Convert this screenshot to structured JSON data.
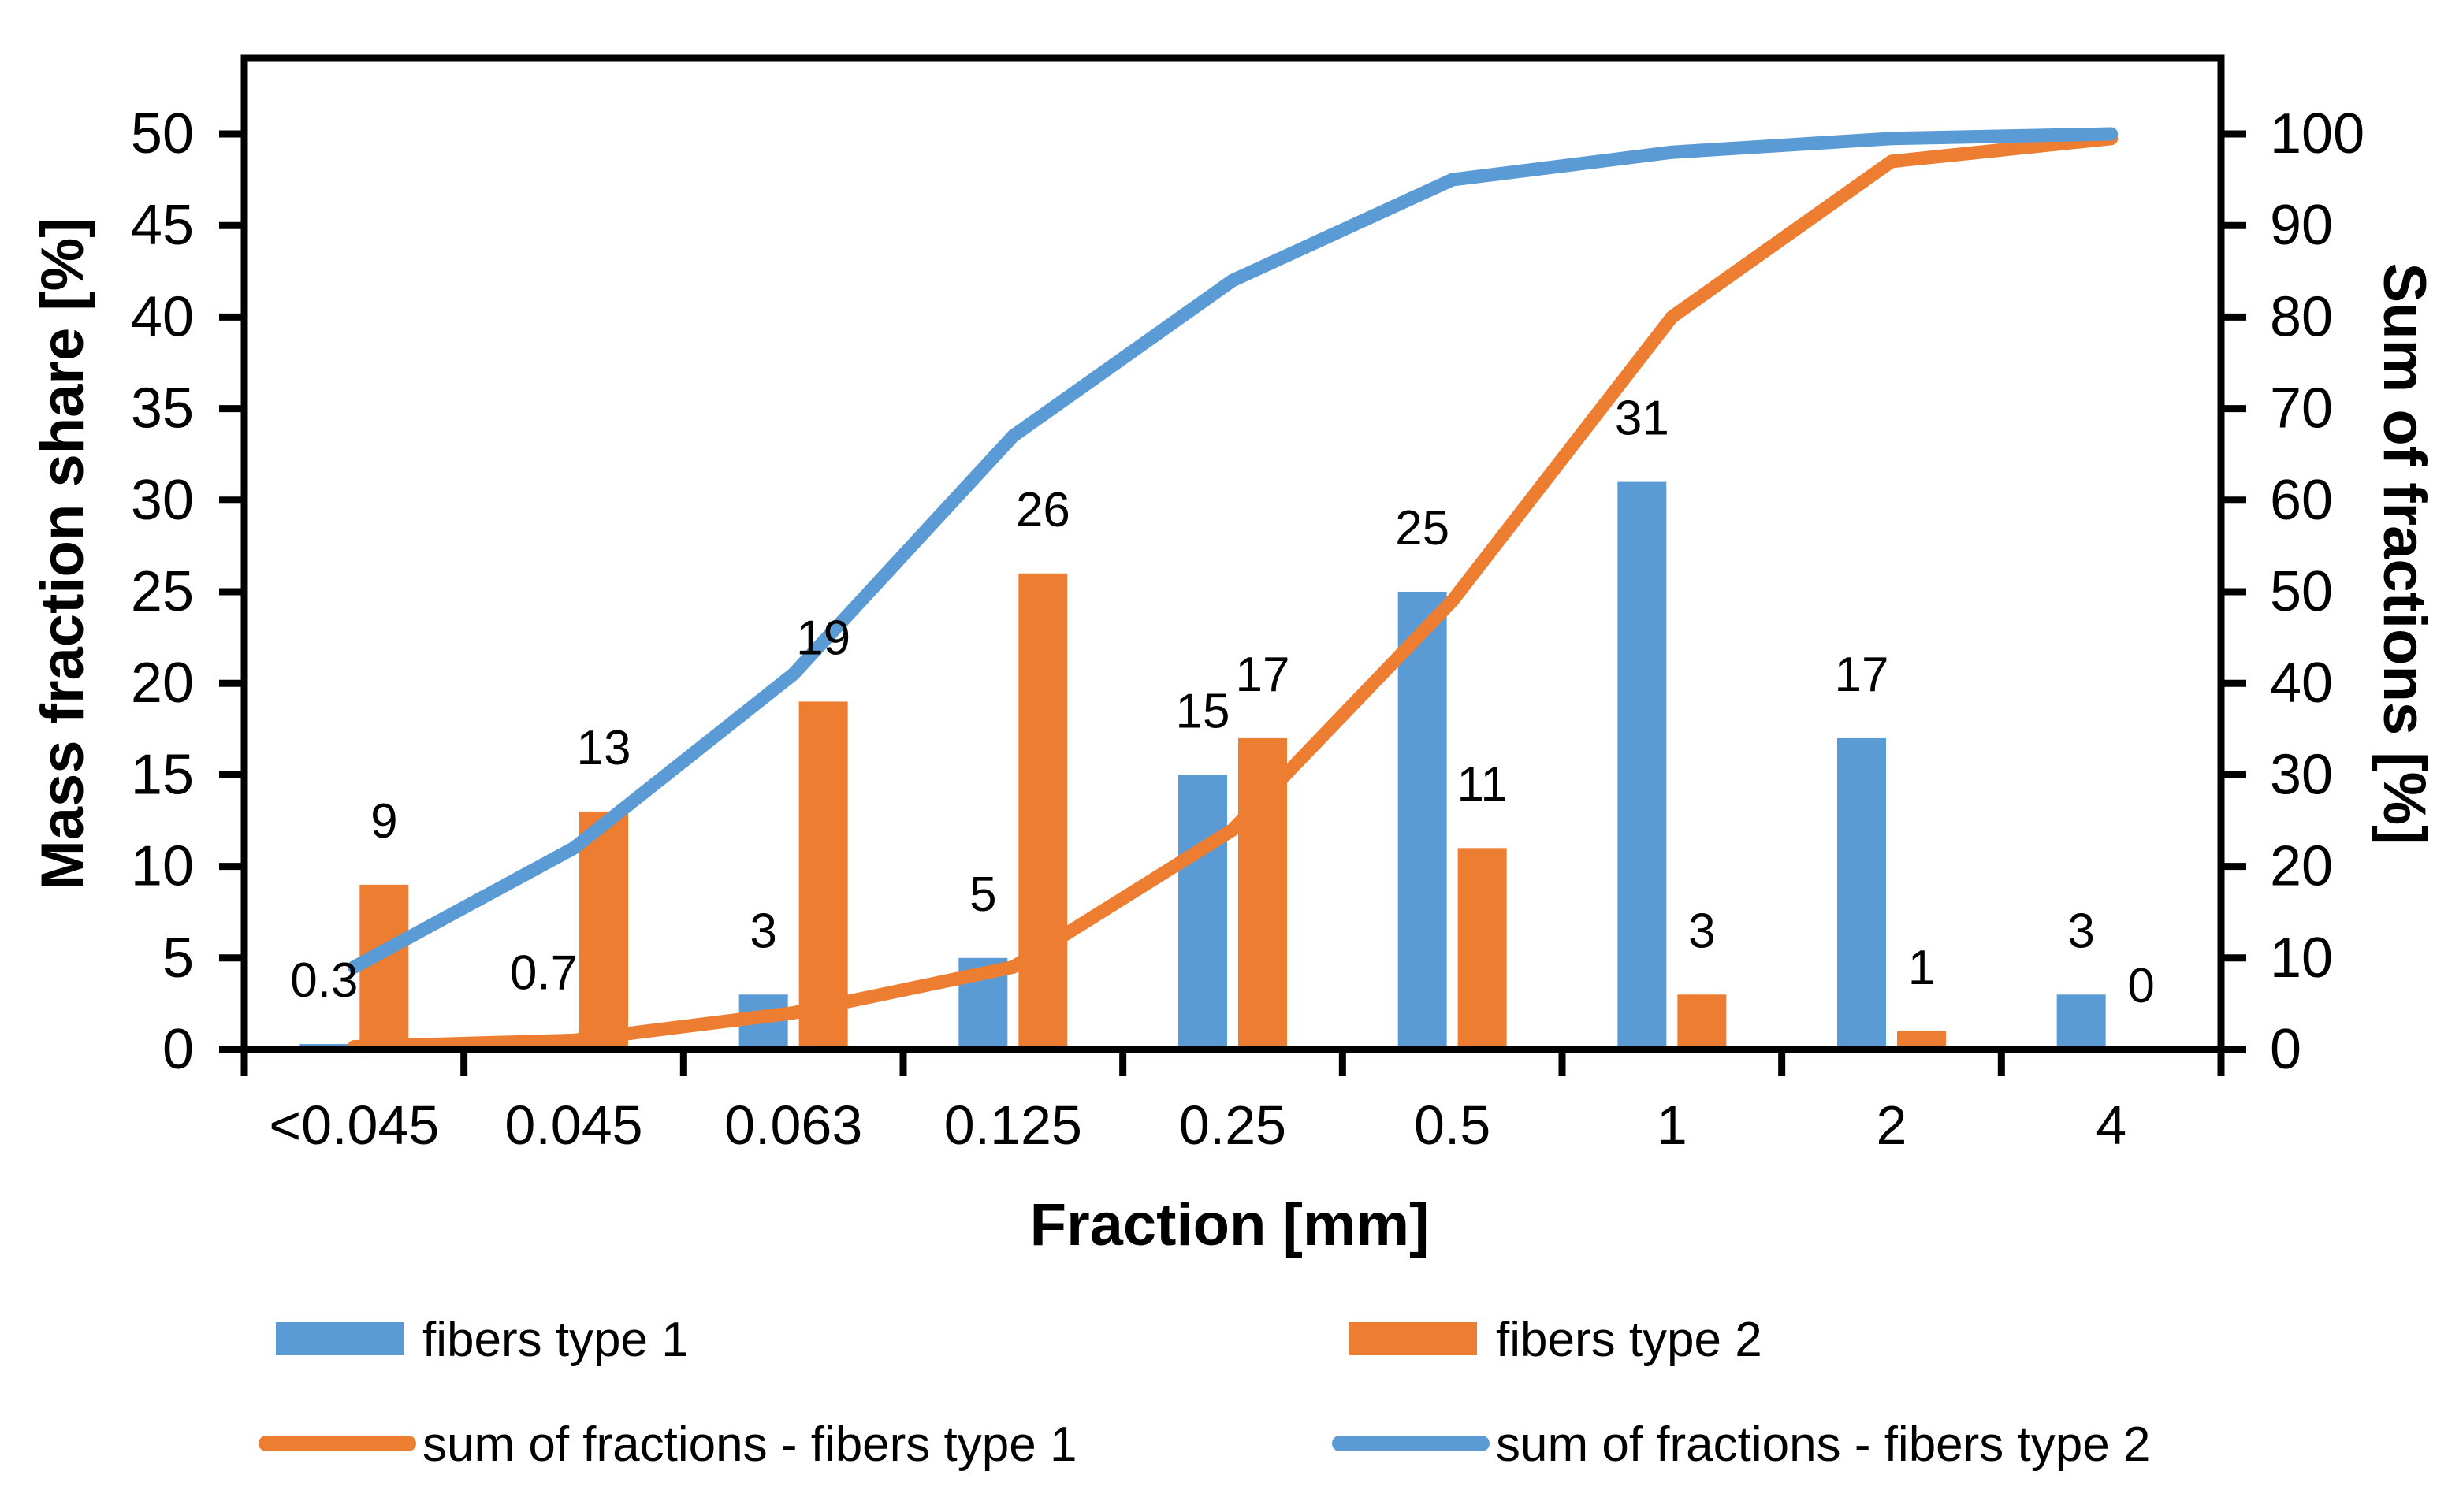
{
  "chart_data": {
    "type": "bar",
    "subtype": "combo-bar-line-dual-axis",
    "categories": [
      "<0.045",
      "0.045",
      "0.063",
      "0.125",
      "0.25",
      "0.5",
      "1",
      "2",
      "4"
    ],
    "series": [
      {
        "name": "fibers type 1",
        "kind": "bar",
        "axis": "left",
        "color": "#5B9BD5",
        "values": [
          0.3,
          0.7,
          3,
          5,
          15,
          25,
          31,
          17,
          3
        ],
        "labels": [
          "0.3",
          "0.7",
          "3",
          "5",
          "15",
          "25",
          "31",
          "17",
          "3"
        ]
      },
      {
        "name": "fibers type 2",
        "kind": "bar",
        "axis": "left",
        "color": "#ED7D31",
        "values": [
          9,
          13,
          19,
          26,
          17,
          11,
          3,
          1,
          0
        ],
        "labels": [
          "9",
          "13",
          "19",
          "26",
          "17",
          "11",
          "3",
          "1",
          "0"
        ]
      },
      {
        "name": "sum of fractions - fibers type 1",
        "kind": "line",
        "axis": "right",
        "color": "#ED7D31",
        "values": [
          0.3,
          1,
          4,
          9,
          24,
          49,
          80,
          97,
          99.5
        ]
      },
      {
        "name": "sum of fractions - fibers type 2",
        "kind": "line",
        "axis": "right",
        "color": "#5B9BD5",
        "values": [
          9,
          22,
          41,
          67,
          84,
          95,
          98,
          99.5,
          100
        ]
      }
    ],
    "left_axis": {
      "title": "Mass fraction share [%]",
      "min": 0,
      "max": 50,
      "step": 5,
      "tick_labels": [
        "0",
        "5",
        "10",
        "15",
        "20",
        "25",
        "30",
        "35",
        "40",
        "45",
        "50"
      ]
    },
    "right_axis": {
      "title": "Sum of fractions [%]",
      "min": 0,
      "max": 100,
      "step": 10,
      "tick_labels": [
        "0",
        "10",
        "20",
        "30",
        "40",
        "50",
        "60",
        "70",
        "80",
        "90",
        "100"
      ]
    },
    "x_axis": {
      "title": "Fraction [mm]"
    },
    "legend": [
      {
        "label": "fibers type 1",
        "swatch": "rect",
        "color": "#5B9BD5"
      },
      {
        "label": "fibers type 2",
        "swatch": "rect",
        "color": "#ED7D31"
      },
      {
        "label": "sum of fractions - fibers type 1",
        "swatch": "line",
        "color": "#ED7D31"
      },
      {
        "label": "sum of fractions - fibers type 2",
        "swatch": "line",
        "color": "#5B9BD5"
      }
    ],
    "layout_hints": {
      "grid": "off",
      "legend_position": "bottom-two-columns",
      "plot_border_color": "#000000"
    }
  }
}
